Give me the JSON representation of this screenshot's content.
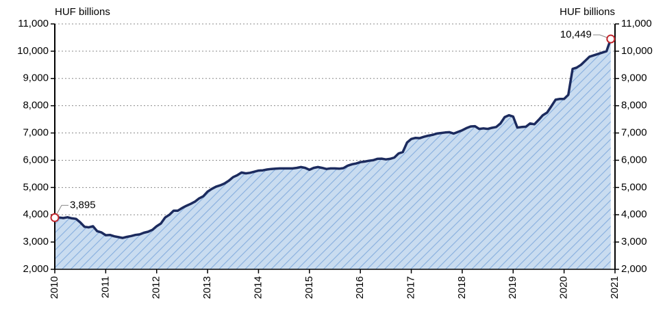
{
  "chart_data": {
    "type": "area",
    "y_label": "HUF billions",
    "y2_label": "HUF billions",
    "xlim": [
      2010,
      2021
    ],
    "xticks": [
      2010,
      2011,
      2012,
      2013,
      2014,
      2015,
      2016,
      2017,
      2018,
      2019,
      2020,
      2021
    ],
    "ylim": [
      2000,
      11000
    ],
    "yticks": [
      {
        "value": 2000,
        "label": "2,000"
      },
      {
        "value": 3000,
        "label": "3,000"
      },
      {
        "value": 4000,
        "label": "4,000"
      },
      {
        "value": 5000,
        "label": "5,000"
      },
      {
        "value": 6000,
        "label": "6,000"
      },
      {
        "value": 7000,
        "label": "7,000"
      },
      {
        "value": 8000,
        "label": "8,000"
      },
      {
        "value": 9000,
        "label": "9,000"
      },
      {
        "value": 10000,
        "label": "10,000"
      },
      {
        "value": 11000,
        "label": "11,000"
      }
    ],
    "y2lim": [
      2000,
      11000
    ],
    "y2ticks": [
      {
        "value": 2000,
        "label": "2,000"
      },
      {
        "value": 3000,
        "label": "3,000"
      },
      {
        "value": 4000,
        "label": "4,000"
      },
      {
        "value": 5000,
        "label": "5,000"
      },
      {
        "value": 6000,
        "label": "6,000"
      },
      {
        "value": 7000,
        "label": "7,000"
      },
      {
        "value": 8000,
        "label": "8,000"
      },
      {
        "value": 9000,
        "label": "9,000"
      },
      {
        "value": 10000,
        "label": "10,000"
      },
      {
        "value": 11000,
        "label": "11,000"
      }
    ],
    "grid": true,
    "x": [
      2010,
      2010.083,
      2010.167,
      2010.25,
      2010.333,
      2010.417,
      2010.5,
      2010.583,
      2010.667,
      2010.75,
      2010.833,
      2010.917,
      2011,
      2011.083,
      2011.167,
      2011.25,
      2011.333,
      2011.417,
      2011.5,
      2011.583,
      2011.667,
      2011.75,
      2011.833,
      2011.917,
      2012,
      2012.083,
      2012.167,
      2012.25,
      2012.333,
      2012.417,
      2012.5,
      2012.583,
      2012.667,
      2012.75,
      2012.833,
      2012.917,
      2013,
      2013.083,
      2013.167,
      2013.25,
      2013.333,
      2013.417,
      2013.5,
      2013.583,
      2013.667,
      2013.75,
      2013.833,
      2013.917,
      2014,
      2014.083,
      2014.167,
      2014.25,
      2014.333,
      2014.417,
      2014.5,
      2014.583,
      2014.667,
      2014.75,
      2014.833,
      2014.917,
      2015,
      2015.083,
      2015.167,
      2015.25,
      2015.333,
      2015.417,
      2015.5,
      2015.583,
      2015.667,
      2015.75,
      2015.833,
      2015.917,
      2016,
      2016.083,
      2016.167,
      2016.25,
      2016.333,
      2016.417,
      2016.5,
      2016.583,
      2016.667,
      2016.75,
      2016.833,
      2016.917,
      2017,
      2017.083,
      2017.167,
      2017.25,
      2017.333,
      2017.417,
      2017.5,
      2017.583,
      2017.667,
      2017.75,
      2017.833,
      2017.917,
      2018,
      2018.083,
      2018.167,
      2018.25,
      2018.333,
      2018.417,
      2018.5,
      2018.583,
      2018.667,
      2018.75,
      2018.833,
      2018.917,
      2019,
      2019.083,
      2019.167,
      2019.25,
      2019.333,
      2019.417,
      2019.5,
      2019.583,
      2019.667,
      2019.75,
      2019.833,
      2019.917,
      2020,
      2020.083,
      2020.167,
      2020.25,
      2020.333,
      2020.417,
      2020.5,
      2020.583,
      2020.667,
      2020.75,
      2020.833,
      2020.917
    ],
    "series": [
      {
        "color": "#1c2b5e",
        "fill": "#c9dcf0",
        "hatch": "#86aede",
        "values": [
          3895,
          3900,
          3880,
          3910,
          3870,
          3850,
          3720,
          3560,
          3540,
          3580,
          3400,
          3350,
          3250,
          3260,
          3210,
          3180,
          3150,
          3190,
          3220,
          3260,
          3280,
          3340,
          3380,
          3450,
          3580,
          3680,
          3900,
          4000,
          4150,
          4150,
          4250,
          4330,
          4400,
          4480,
          4600,
          4680,
          4850,
          4950,
          5030,
          5080,
          5150,
          5250,
          5380,
          5450,
          5550,
          5520,
          5540,
          5580,
          5620,
          5630,
          5660,
          5680,
          5690,
          5700,
          5700,
          5700,
          5700,
          5720,
          5750,
          5720,
          5650,
          5720,
          5750,
          5720,
          5680,
          5700,
          5700,
          5690,
          5710,
          5800,
          5850,
          5880,
          5930,
          5950,
          5980,
          6000,
          6050,
          6060,
          6030,
          6050,
          6100,
          6250,
          6300,
          6650,
          6780,
          6820,
          6810,
          6860,
          6900,
          6930,
          6980,
          7000,
          7020,
          7030,
          6980,
          7040,
          7100,
          7180,
          7240,
          7250,
          7150,
          7170,
          7150,
          7190,
          7220,
          7350,
          7580,
          7650,
          7600,
          7200,
          7220,
          7230,
          7350,
          7320,
          7480,
          7650,
          7750,
          7980,
          8220,
          8250,
          8250,
          8400,
          9350,
          9400,
          9500,
          9650,
          9800,
          9850,
          9900,
          9950,
          10000,
          10449
        ]
      }
    ],
    "annotations": [
      {
        "x": 2010,
        "value": 3895,
        "label": "3,895"
      },
      {
        "x": 2020.917,
        "value": 10449,
        "label": "10,449"
      }
    ]
  }
}
